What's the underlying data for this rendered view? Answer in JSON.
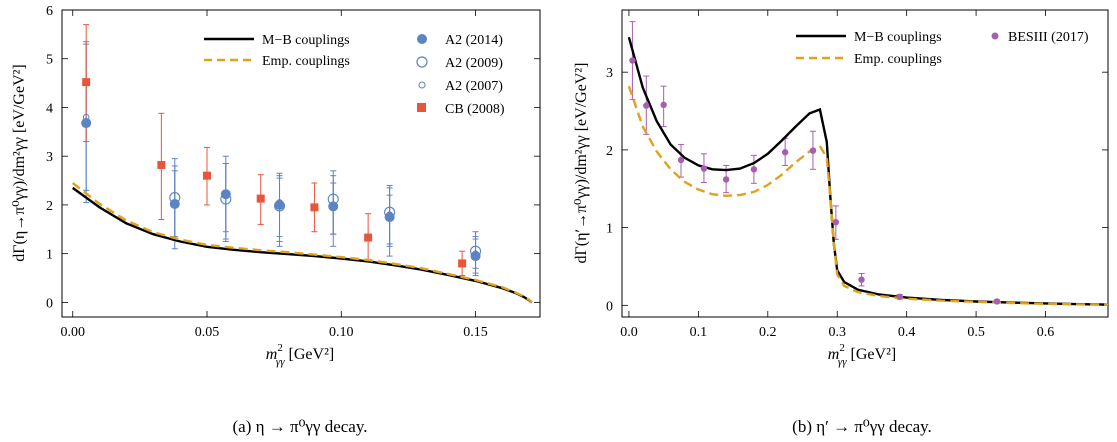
{
  "chart_data": [
    {
      "type": "line",
      "panel": "a",
      "caption": "(a) η → π⁰γγ decay.",
      "xlabel_main": "m",
      "xlabel_sup": "2",
      "xlabel_sub": "γγ",
      "xlabel_unit": " [GeV²]",
      "ylabel": "dΓ(η→π⁰γγ)/dm²γγ [eV/GeV²]",
      "xlim": [
        -0.004,
        0.174
      ],
      "ylim": [
        -0.3,
        6
      ],
      "xticks": [
        0.0,
        0.05,
        0.1,
        0.15
      ],
      "xtick_labels": [
        "0.00",
        "0.05",
        "0.10",
        "0.15"
      ],
      "yticks": [
        0,
        1,
        2,
        3,
        4,
        5,
        6
      ],
      "ytick_labels": [
        "0",
        "1",
        "2",
        "3",
        "4",
        "5",
        "6"
      ],
      "legend_position": "top-right",
      "lines": [
        {
          "name": "M−B couplings",
          "color": "#000000",
          "dash": "solid",
          "x": [
            0.0,
            0.01,
            0.02,
            0.03,
            0.04,
            0.05,
            0.06,
            0.07,
            0.08,
            0.09,
            0.1,
            0.11,
            0.12,
            0.13,
            0.14,
            0.15,
            0.16,
            0.165,
            0.168,
            0.17,
            0.171
          ],
          "y": [
            2.35,
            1.95,
            1.62,
            1.4,
            1.25,
            1.14,
            1.08,
            1.03,
            0.99,
            0.95,
            0.9,
            0.84,
            0.76,
            0.67,
            0.56,
            0.44,
            0.29,
            0.19,
            0.11,
            0.04,
            0.0
          ]
        },
        {
          "name": "Emp. couplings",
          "color": "#E0A21E",
          "dash": "dashed",
          "x": [
            0.0,
            0.01,
            0.02,
            0.03,
            0.04,
            0.05,
            0.06,
            0.07,
            0.08,
            0.09,
            0.1,
            0.11,
            0.12,
            0.13,
            0.14,
            0.15,
            0.16,
            0.165,
            0.168,
            0.17,
            0.171
          ],
          "y": [
            2.45,
            2.02,
            1.68,
            1.44,
            1.29,
            1.18,
            1.12,
            1.07,
            1.03,
            0.98,
            0.93,
            0.87,
            0.79,
            0.7,
            0.58,
            0.46,
            0.31,
            0.2,
            0.12,
            0.05,
            0.0
          ]
        }
      ],
      "points": [
        {
          "name": "A2 (2014)",
          "marker": "filled-circle",
          "color": "#5B84C4",
          "data": [
            {
              "x": 0.005,
              "y": 3.68,
              "lo": 2.05,
              "hi": 5.3
            },
            {
              "x": 0.038,
              "y": 2.02,
              "lo": 1.1,
              "hi": 2.8
            },
            {
              "x": 0.057,
              "y": 2.22,
              "lo": 1.25,
              "hi": 3.0
            },
            {
              "x": 0.077,
              "y": 2.0,
              "lo": 1.15,
              "hi": 2.65
            },
            {
              "x": 0.097,
              "y": 1.97,
              "lo": 1.15,
              "hi": 2.6
            },
            {
              "x": 0.118,
              "y": 1.75,
              "lo": 0.95,
              "hi": 2.35
            },
            {
              "x": 0.15,
              "y": 0.95,
              "lo": 0.55,
              "hi": 1.45
            }
          ]
        },
        {
          "name": "A2 (2009)",
          "marker": "open-circle",
          "color": "#5B84C4",
          "data": [
            {
              "x": 0.038,
              "y": 2.15,
              "lo": 1.3,
              "hi": 2.95
            },
            {
              "x": 0.057,
              "y": 2.12,
              "lo": 1.3,
              "hi": 2.85
            },
            {
              "x": 0.077,
              "y": 1.98,
              "lo": 1.25,
              "hi": 2.6
            },
            {
              "x": 0.097,
              "y": 2.12,
              "lo": 1.4,
              "hi": 2.7
            },
            {
              "x": 0.118,
              "y": 1.85,
              "lo": 1.15,
              "hi": 2.4
            },
            {
              "x": 0.15,
              "y": 1.05,
              "lo": 0.6,
              "hi": 1.35
            }
          ]
        },
        {
          "name": "A2 (2007)",
          "marker": "small-open-circle",
          "color": "#5B84C4",
          "data": [
            {
              "x": 0.005,
              "y": 3.8,
              "lo": 2.3,
              "hi": 5.35
            },
            {
              "x": 0.038,
              "y": 2.05,
              "lo": 1.35,
              "hi": 2.7
            },
            {
              "x": 0.057,
              "y": 2.25,
              "lo": 1.45,
              "hi": 2.85
            },
            {
              "x": 0.077,
              "y": 2.05,
              "lo": 1.35,
              "hi": 2.55
            },
            {
              "x": 0.097,
              "y": 1.95,
              "lo": 1.4,
              "hi": 2.45
            },
            {
              "x": 0.118,
              "y": 1.8,
              "lo": 1.2,
              "hi": 2.2
            },
            {
              "x": 0.15,
              "y": 1.0,
              "lo": 0.7,
              "hi": 1.3
            }
          ]
        },
        {
          "name": "CB (2008)",
          "marker": "filled-square",
          "color": "#E8553A",
          "data": [
            {
              "x": 0.005,
              "y": 4.52,
              "lo": 3.3,
              "hi": 5.7
            },
            {
              "x": 0.033,
              "y": 2.82,
              "lo": 1.7,
              "hi": 3.88
            },
            {
              "x": 0.05,
              "y": 2.6,
              "lo": 2.0,
              "hi": 3.18
            },
            {
              "x": 0.07,
              "y": 2.13,
              "lo": 1.6,
              "hi": 2.62
            },
            {
              "x": 0.09,
              "y": 1.95,
              "lo": 1.45,
              "hi": 2.45
            },
            {
              "x": 0.11,
              "y": 1.33,
              "lo": 0.85,
              "hi": 1.82
            },
            {
              "x": 0.145,
              "y": 0.8,
              "lo": 0.55,
              "hi": 1.05
            }
          ]
        }
      ]
    },
    {
      "type": "line",
      "panel": "b",
      "caption": "(b) η′ → π⁰γγ decay.",
      "xlabel_main": "m",
      "xlabel_sup": "2",
      "xlabel_sub": "γγ",
      "xlabel_unit": " [GeV²]",
      "ylabel": "dΓ(η′→π⁰γγ)/dm²γγ [eV/GeV²]",
      "xlim": [
        -0.01,
        0.69
      ],
      "ylim": [
        -0.15,
        3.8
      ],
      "xticks": [
        0.0,
        0.1,
        0.2,
        0.3,
        0.4,
        0.5,
        0.6
      ],
      "xtick_labels": [
        "0.0",
        "0.1",
        "0.2",
        "0.3",
        "0.4",
        "0.5",
        "0.6"
      ],
      "yticks": [
        0,
        1,
        2,
        3
      ],
      "ytick_labels": [
        "0",
        "1",
        "2",
        "3"
      ],
      "legend_position": "top-right",
      "lines": [
        {
          "name": "M−B couplings",
          "color": "#000000",
          "dash": "solid",
          "x": [
            0.0,
            0.02,
            0.04,
            0.06,
            0.08,
            0.1,
            0.12,
            0.14,
            0.16,
            0.18,
            0.2,
            0.22,
            0.24,
            0.26,
            0.275,
            0.285,
            0.29,
            0.295,
            0.3,
            0.31,
            0.33,
            0.36,
            0.4,
            0.45,
            0.5,
            0.55,
            0.6,
            0.65,
            0.69
          ],
          "y": [
            3.45,
            2.8,
            2.37,
            2.07,
            1.9,
            1.8,
            1.75,
            1.74,
            1.76,
            1.83,
            1.95,
            2.12,
            2.3,
            2.47,
            2.52,
            2.1,
            1.4,
            0.8,
            0.45,
            0.3,
            0.2,
            0.14,
            0.1,
            0.07,
            0.05,
            0.035,
            0.025,
            0.015,
            0.01
          ]
        },
        {
          "name": "Emp. couplings",
          "color": "#E0A21E",
          "dash": "dashed",
          "x": [
            0.0,
            0.02,
            0.04,
            0.06,
            0.08,
            0.1,
            0.12,
            0.14,
            0.16,
            0.18,
            0.2,
            0.22,
            0.24,
            0.26,
            0.275,
            0.285,
            0.29,
            0.295,
            0.3,
            0.31,
            0.33,
            0.36,
            0.4,
            0.45,
            0.5,
            0.55,
            0.6,
            0.65,
            0.69
          ],
          "y": [
            2.82,
            2.3,
            1.98,
            1.75,
            1.59,
            1.49,
            1.43,
            1.41,
            1.42,
            1.46,
            1.55,
            1.68,
            1.84,
            1.98,
            2.05,
            1.9,
            1.4,
            0.8,
            0.4,
            0.25,
            0.17,
            0.12,
            0.085,
            0.06,
            0.045,
            0.03,
            0.02,
            0.012,
            0.008
          ]
        }
      ],
      "points": [
        {
          "name": "BESIII (2017)",
          "marker": "filled-circle",
          "color": "#A65FB0",
          "data": [
            {
              "x": 0.005,
              "y": 3.15,
              "lo": 2.65,
              "hi": 3.65
            },
            {
              "x": 0.025,
              "y": 2.57,
              "lo": 2.2,
              "hi": 2.95
            },
            {
              "x": 0.05,
              "y": 2.58,
              "lo": 2.3,
              "hi": 2.82
            },
            {
              "x": 0.075,
              "y": 1.87,
              "lo": 1.65,
              "hi": 2.07
            },
            {
              "x": 0.108,
              "y": 1.76,
              "lo": 1.58,
              "hi": 1.95
            },
            {
              "x": 0.14,
              "y": 1.62,
              "lo": 1.45,
              "hi": 1.8
            },
            {
              "x": 0.18,
              "y": 1.75,
              "lo": 1.57,
              "hi": 1.93
            },
            {
              "x": 0.225,
              "y": 1.97,
              "lo": 1.8,
              "hi": 2.15
            },
            {
              "x": 0.265,
              "y": 1.99,
              "lo": 1.75,
              "hi": 2.24
            },
            {
              "x": 0.298,
              "y": 1.07,
              "lo": 0.85,
              "hi": 1.28
            },
            {
              "x": 0.335,
              "y": 0.33,
              "lo": 0.25,
              "hi": 0.41
            },
            {
              "x": 0.39,
              "y": 0.11,
              "lo": 0.08,
              "hi": 0.14
            },
            {
              "x": 0.53,
              "y": 0.05,
              "lo": 0.03,
              "hi": 0.07
            }
          ]
        }
      ]
    }
  ]
}
